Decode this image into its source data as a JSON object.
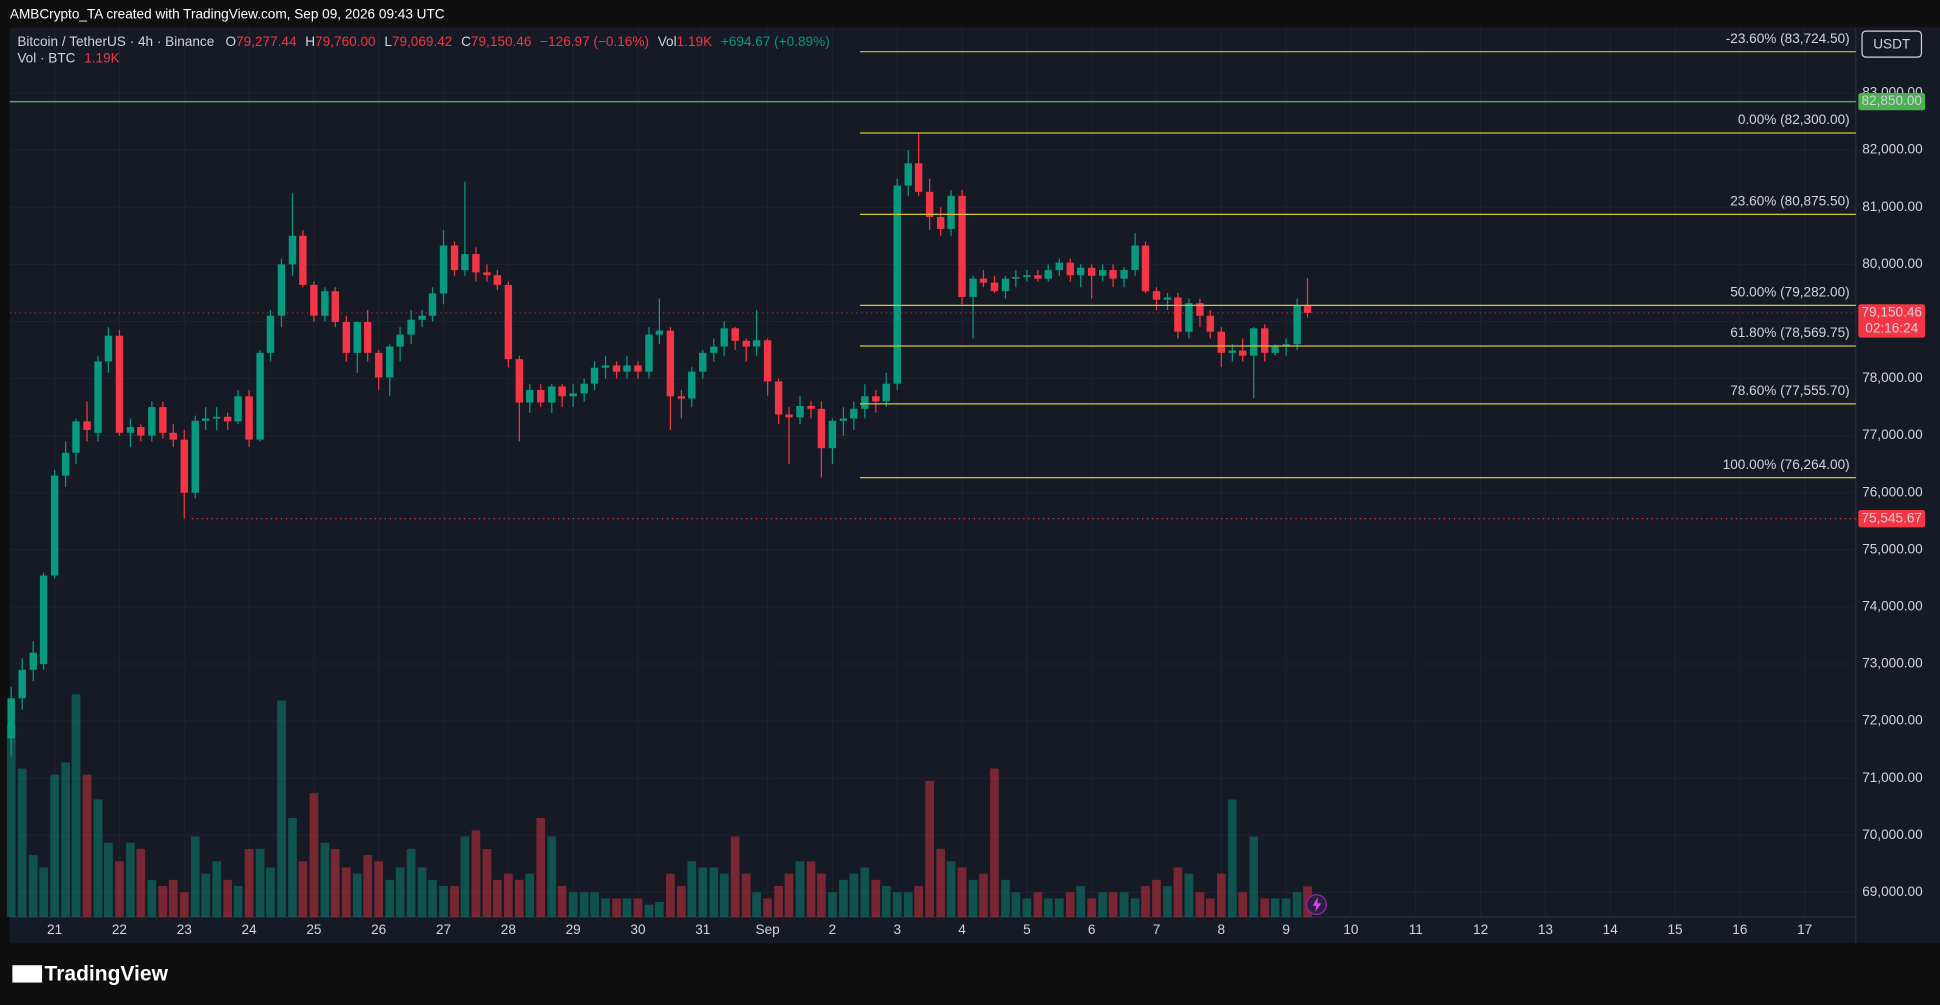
{
  "header": {
    "credit": "AMBCrypto_TA created with TradingView.com, Sep 09, 2026 09:43 UTC",
    "currency": "USDT",
    "brand": "TradingView"
  },
  "legend": {
    "symbol": "Bitcoin / TetherUS · 4h · Binance",
    "o_label": "O",
    "o": "79,277.44",
    "h_label": "H",
    "h": "79,760.00",
    "l_label": "L",
    "l": "79,069.42",
    "c_label": "C",
    "c": "79,150.46",
    "change": "−126.97 (−0.16%)",
    "vol_label": "Vol",
    "vol": "1.19K",
    "vol_change": "+694.67 (+0.89%)"
  },
  "volume_legend": {
    "label": "Vol · BTC",
    "value": "1.19K"
  },
  "chart_data": {
    "type": "candlestick",
    "up_color": "#089981",
    "down_color": "#f23645",
    "grid": true,
    "xlim": [
      20.31,
      48.79
    ],
    "ylim": [
      68570,
      84150
    ],
    "xticks": [
      21,
      22,
      23,
      24,
      25,
      26,
      27,
      28,
      29,
      30,
      31,
      {
        "value": 32,
        "label": "Sep"
      },
      {
        "value": 33,
        "label": "2"
      },
      {
        "value": 34,
        "label": "3"
      },
      {
        "value": 35,
        "label": "4"
      },
      {
        "value": 36,
        "label": "5"
      },
      {
        "value": 37,
        "label": "6"
      },
      {
        "value": 38,
        "label": "7"
      },
      {
        "value": 39,
        "label": "8"
      },
      {
        "value": 40,
        "label": "9"
      },
      {
        "value": 41,
        "label": "10"
      },
      {
        "value": 42,
        "label": "11"
      },
      {
        "value": 43,
        "label": "12"
      },
      {
        "value": 44,
        "label": "13"
      },
      {
        "value": 45,
        "label": "14"
      },
      {
        "value": 46,
        "label": "15"
      },
      {
        "value": 47,
        "label": "16"
      },
      {
        "value": 48,
        "label": "17"
      }
    ],
    "yticks": [
      {
        "value": 69000,
        "label": "69,000.00"
      },
      {
        "value": 70000,
        "label": "70,000.00"
      },
      {
        "value": 71000,
        "label": "71,000.00"
      },
      {
        "value": 72000,
        "label": "72,000.00"
      },
      {
        "value": 73000,
        "label": "73,000.00"
      },
      {
        "value": 74000,
        "label": "74,000.00"
      },
      {
        "value": 75000,
        "label": "75,000.00"
      },
      {
        "value": 76000,
        "label": "76,000.00"
      },
      {
        "value": 77000,
        "label": "77,000.00"
      },
      {
        "value": 78000,
        "label": "78,000.00"
      },
      {
        "value": 79000,
        "label": "79,000.00"
      },
      {
        "value": 80000,
        "label": "80,000.00"
      },
      {
        "value": 81000,
        "label": "81,000.00"
      },
      {
        "value": 82000,
        "label": "82,000.00"
      },
      {
        "value": 83000,
        "label": "83,000.00"
      }
    ],
    "fib": [
      {
        "value": 83724.5,
        "label": "-23.60% (83,724.50)"
      },
      {
        "value": 82300,
        "label": "0.00% (82,300.00)"
      },
      {
        "value": 80875.5,
        "label": "23.60% (80,875.50)"
      },
      {
        "value": 79282,
        "label": "50.00% (79,282.00)"
      },
      {
        "value": 78569.75,
        "label": "61.80% (78,569.75)"
      },
      {
        "value": 77555.7,
        "label": "78.60% (77,555.70)"
      },
      {
        "value": 76264,
        "label": "100.00% (76,264.00)"
      }
    ],
    "resistance": {
      "value": 82850,
      "label": "82,850.00",
      "color": "#4caf50"
    },
    "support": {
      "value": 75545.67,
      "label": "75,545.67",
      "color": "#f23645"
    },
    "last_price": {
      "value": 79150.46,
      "label": "79,150.46",
      "countdown": "02:16:24"
    },
    "x": [
      20.33,
      20.5,
      20.67,
      20.83,
      21,
      21.17,
      21.33,
      21.5,
      21.67,
      21.83,
      22,
      22.17,
      22.33,
      22.5,
      22.67,
      22.83,
      23,
      23.17,
      23.33,
      23.5,
      23.67,
      23.83,
      24,
      24.17,
      24.33,
      24.5,
      24.67,
      24.83,
      25,
      25.17,
      25.33,
      25.5,
      25.67,
      25.83,
      26,
      26.17,
      26.33,
      26.5,
      26.67,
      26.83,
      27,
      27.17,
      27.33,
      27.5,
      27.67,
      27.83,
      28,
      28.17,
      28.33,
      28.5,
      28.67,
      28.83,
      29,
      29.17,
      29.33,
      29.5,
      29.67,
      29.83,
      30,
      30.17,
      30.33,
      30.5,
      30.67,
      30.83,
      31,
      31.17,
      31.33,
      31.5,
      31.67,
      31.83,
      32,
      32.17,
      32.33,
      32.5,
      32.67,
      32.83,
      33,
      33.17,
      33.33,
      33.5,
      33.67,
      33.83,
      34,
      34.17,
      34.33,
      34.5,
      34.67,
      34.83,
      35,
      35.17,
      35.33,
      35.5,
      35.67,
      35.83,
      36,
      36.17,
      36.33,
      36.5,
      36.67,
      36.83,
      37,
      37.17,
      37.33,
      37.5,
      37.67,
      37.83,
      38,
      38.17,
      38.33,
      38.5,
      38.67,
      38.83,
      39,
      39.17,
      39.33,
      39.5,
      39.67,
      39.83,
      40,
      40.17,
      40.33
    ],
    "ohlc": [
      [
        71700,
        72600,
        71400,
        72400
      ],
      [
        72400,
        73100,
        72200,
        72900
      ],
      [
        72900,
        73400,
        72700,
        73200
      ],
      [
        73000,
        74600,
        72900,
        74550
      ],
      [
        74550,
        76400,
        74500,
        76300
      ],
      [
        76300,
        76900,
        76100,
        76700
      ],
      [
        76700,
        77300,
        76500,
        77250
      ],
      [
        77250,
        77600,
        76900,
        77100
      ],
      [
        77050,
        78400,
        76900,
        78300
      ],
      [
        78300,
        78900,
        78100,
        78750
      ],
      [
        78750,
        78850,
        77000,
        77050
      ],
      [
        77050,
        77300,
        76800,
        77150
      ],
      [
        77150,
        77200,
        76900,
        77000
      ],
      [
        77000,
        77600,
        76900,
        77500
      ],
      [
        77500,
        77600,
        76950,
        77050
      ],
      [
        77050,
        77200,
        76800,
        76930
      ],
      [
        76930,
        77100,
        75545.67,
        76000
      ],
      [
        76000,
        77350,
        75900,
        77260
      ],
      [
        77260,
        77500,
        77100,
        77300
      ],
      [
        77300,
        77500,
        77100,
        77330
      ],
      [
        77330,
        77400,
        77100,
        77250
      ],
      [
        77250,
        77800,
        77200,
        77690
      ],
      [
        77690,
        77800,
        76800,
        76930
      ],
      [
        76930,
        78500,
        76900,
        78450
      ],
      [
        78450,
        79200,
        78300,
        79100
      ],
      [
        79100,
        80100,
        78900,
        80000
      ],
      [
        80000,
        81250,
        79800,
        80500
      ],
      [
        80500,
        80600,
        79600,
        79640
      ],
      [
        79640,
        79700,
        79000,
        79100
      ],
      [
        79100,
        79600,
        79000,
        79530
      ],
      [
        79530,
        79600,
        78900,
        78990
      ],
      [
        78990,
        79100,
        78300,
        78450
      ],
      [
        78450,
        79000,
        78100,
        78990
      ],
      [
        78990,
        79200,
        78300,
        78450
      ],
      [
        78450,
        78500,
        77800,
        78020
      ],
      [
        78020,
        78600,
        77700,
        78560
      ],
      [
        78560,
        78900,
        78300,
        78770
      ],
      [
        78770,
        79200,
        78600,
        79030
      ],
      [
        79030,
        79200,
        78900,
        79100
      ],
      [
        79100,
        79600,
        79000,
        79490
      ],
      [
        79490,
        80600,
        79300,
        80330
      ],
      [
        80330,
        80400,
        79800,
        79900
      ],
      [
        79900,
        81450,
        79800,
        80180
      ],
      [
        80180,
        80300,
        79700,
        79860
      ],
      [
        79860,
        80000,
        79700,
        79810
      ],
      [
        79810,
        79900,
        79550,
        79640
      ],
      [
        79640,
        79700,
        78200,
        78340
      ],
      [
        78340,
        78400,
        76900,
        77580
      ],
      [
        77580,
        77900,
        77400,
        77800
      ],
      [
        77800,
        77900,
        77500,
        77580
      ],
      [
        77580,
        77900,
        77400,
        77860
      ],
      [
        77860,
        77900,
        77500,
        77690
      ],
      [
        77690,
        77900,
        77500,
        77740
      ],
      [
        77740,
        78000,
        77600,
        77910
      ],
      [
        77910,
        78300,
        77800,
        78190
      ],
      [
        78190,
        78400,
        78000,
        78230
      ],
      [
        78230,
        78300,
        78000,
        78120
      ],
      [
        78120,
        78400,
        78000,
        78230
      ],
      [
        78230,
        78300,
        78000,
        78120
      ],
      [
        78120,
        78900,
        78000,
        78770
      ],
      [
        78770,
        79400,
        78600,
        78840
      ],
      [
        78840,
        78900,
        77100,
        77690
      ],
      [
        77690,
        77800,
        77300,
        77650
      ],
      [
        77650,
        78200,
        77500,
        78120
      ],
      [
        78120,
        78500,
        78000,
        78450
      ],
      [
        78450,
        78700,
        78300,
        78560
      ],
      [
        78560,
        79000,
        78400,
        78880
      ],
      [
        78880,
        78900,
        78500,
        78660
      ],
      [
        78660,
        78700,
        78300,
        78560
      ],
      [
        78560,
        79200,
        78400,
        78670
      ],
      [
        78670,
        78700,
        77700,
        77950
      ],
      [
        77950,
        78000,
        77200,
        77370
      ],
      [
        77370,
        77500,
        76500,
        77320
      ],
      [
        77320,
        77700,
        77200,
        77520
      ],
      [
        77520,
        77600,
        77300,
        77470
      ],
      [
        77470,
        77600,
        76264,
        76780
      ],
      [
        76780,
        77300,
        76500,
        77260
      ],
      [
        77260,
        77500,
        77000,
        77300
      ],
      [
        77300,
        77600,
        77100,
        77470
      ],
      [
        77470,
        77900,
        77300,
        77690
      ],
      [
        77690,
        77800,
        77400,
        77600
      ],
      [
        77600,
        78100,
        77500,
        77910
      ],
      [
        77910,
        81500,
        77800,
        81380
      ],
      [
        81380,
        82000,
        81200,
        81770
      ],
      [
        81770,
        82300,
        81200,
        81270
      ],
      [
        81270,
        81500,
        80600,
        80830
      ],
      [
        80830,
        81000,
        80500,
        80620
      ],
      [
        80620,
        81300,
        80500,
        81200
      ],
      [
        81200,
        81300,
        79300,
        79430
      ],
      [
        79430,
        79800,
        78700,
        79750
      ],
      [
        79750,
        79900,
        79600,
        79680
      ],
      [
        79680,
        79800,
        79500,
        79530
      ],
      [
        79530,
        79800,
        79400,
        79750
      ],
      [
        79750,
        79900,
        79600,
        79780
      ],
      [
        79780,
        79900,
        79700,
        79810
      ],
      [
        79810,
        79900,
        79700,
        79750
      ],
      [
        79750,
        80000,
        79700,
        79900
      ],
      [
        79900,
        80100,
        79800,
        80030
      ],
      [
        80030,
        80100,
        79700,
        79810
      ],
      [
        79810,
        80000,
        79600,
        79940
      ],
      [
        79940,
        80000,
        79400,
        79800
      ],
      [
        79800,
        80000,
        79700,
        79900
      ],
      [
        79900,
        80000,
        79600,
        79750
      ],
      [
        79750,
        79950,
        79600,
        79900
      ],
      [
        79900,
        80550,
        79800,
        80330
      ],
      [
        80330,
        80400,
        79500,
        79530
      ],
      [
        79530,
        79600,
        79200,
        79380
      ],
      [
        79380,
        79500,
        79200,
        79420
      ],
      [
        79420,
        79500,
        78700,
        78820
      ],
      [
        78820,
        79400,
        78700,
        79320
      ],
      [
        79320,
        79400,
        78900,
        79100
      ],
      [
        79100,
        79200,
        78700,
        78820
      ],
      [
        78820,
        78900,
        78200,
        78450
      ],
      [
        78450,
        78600,
        78300,
        78490
      ],
      [
        78490,
        78700,
        78300,
        78400
      ],
      [
        78400,
        78900,
        77650,
        78880
      ],
      [
        78880,
        78950,
        78300,
        78450
      ],
      [
        78450,
        78600,
        78400,
        78560
      ],
      [
        78560,
        78700,
        78400,
        78600
      ],
      [
        78600,
        79400,
        78500,
        79270
      ],
      [
        79277.44,
        79760,
        79069.42,
        79150.46
      ]
    ],
    "volume": [
      7440,
      5760,
      2400,
      1920,
      5520,
      6000,
      8640,
      5520,
      4560,
      2880,
      2160,
      2880,
      2640,
      1440,
      1200,
      1440,
      960,
      3120,
      1680,
      2160,
      1440,
      1200,
      2640,
      2640,
      1920,
      8400,
      3840,
      2160,
      4800,
      2880,
      2640,
      1920,
      1680,
      2400,
      2160,
      1440,
      1920,
      2640,
      1920,
      1440,
      1200,
      1200,
      3120,
      3360,
      2640,
      1440,
      1680,
      1440,
      1680,
      3840,
      3120,
      1200,
      960,
      960,
      960,
      720,
      720,
      720,
      720,
      480,
      580,
      1680,
      1200,
      2160,
      1920,
      1920,
      1680,
      3120,
      1680,
      960,
      720,
      1200,
      1680,
      2160,
      2160,
      1680,
      960,
      1440,
      1680,
      1920,
      1440,
      1200,
      960,
      960,
      1200,
      5280,
      2640,
      2160,
      1920,
      1440,
      1680,
      5760,
      1440,
      960,
      720,
      960,
      720,
      720,
      960,
      1200,
      720,
      960,
      960,
      960,
      720,
      1200,
      1440,
      1200,
      1920,
      1680,
      960,
      720,
      1680,
      4560,
      960,
      3120,
      720,
      720,
      720,
      960,
      1190
    ]
  }
}
